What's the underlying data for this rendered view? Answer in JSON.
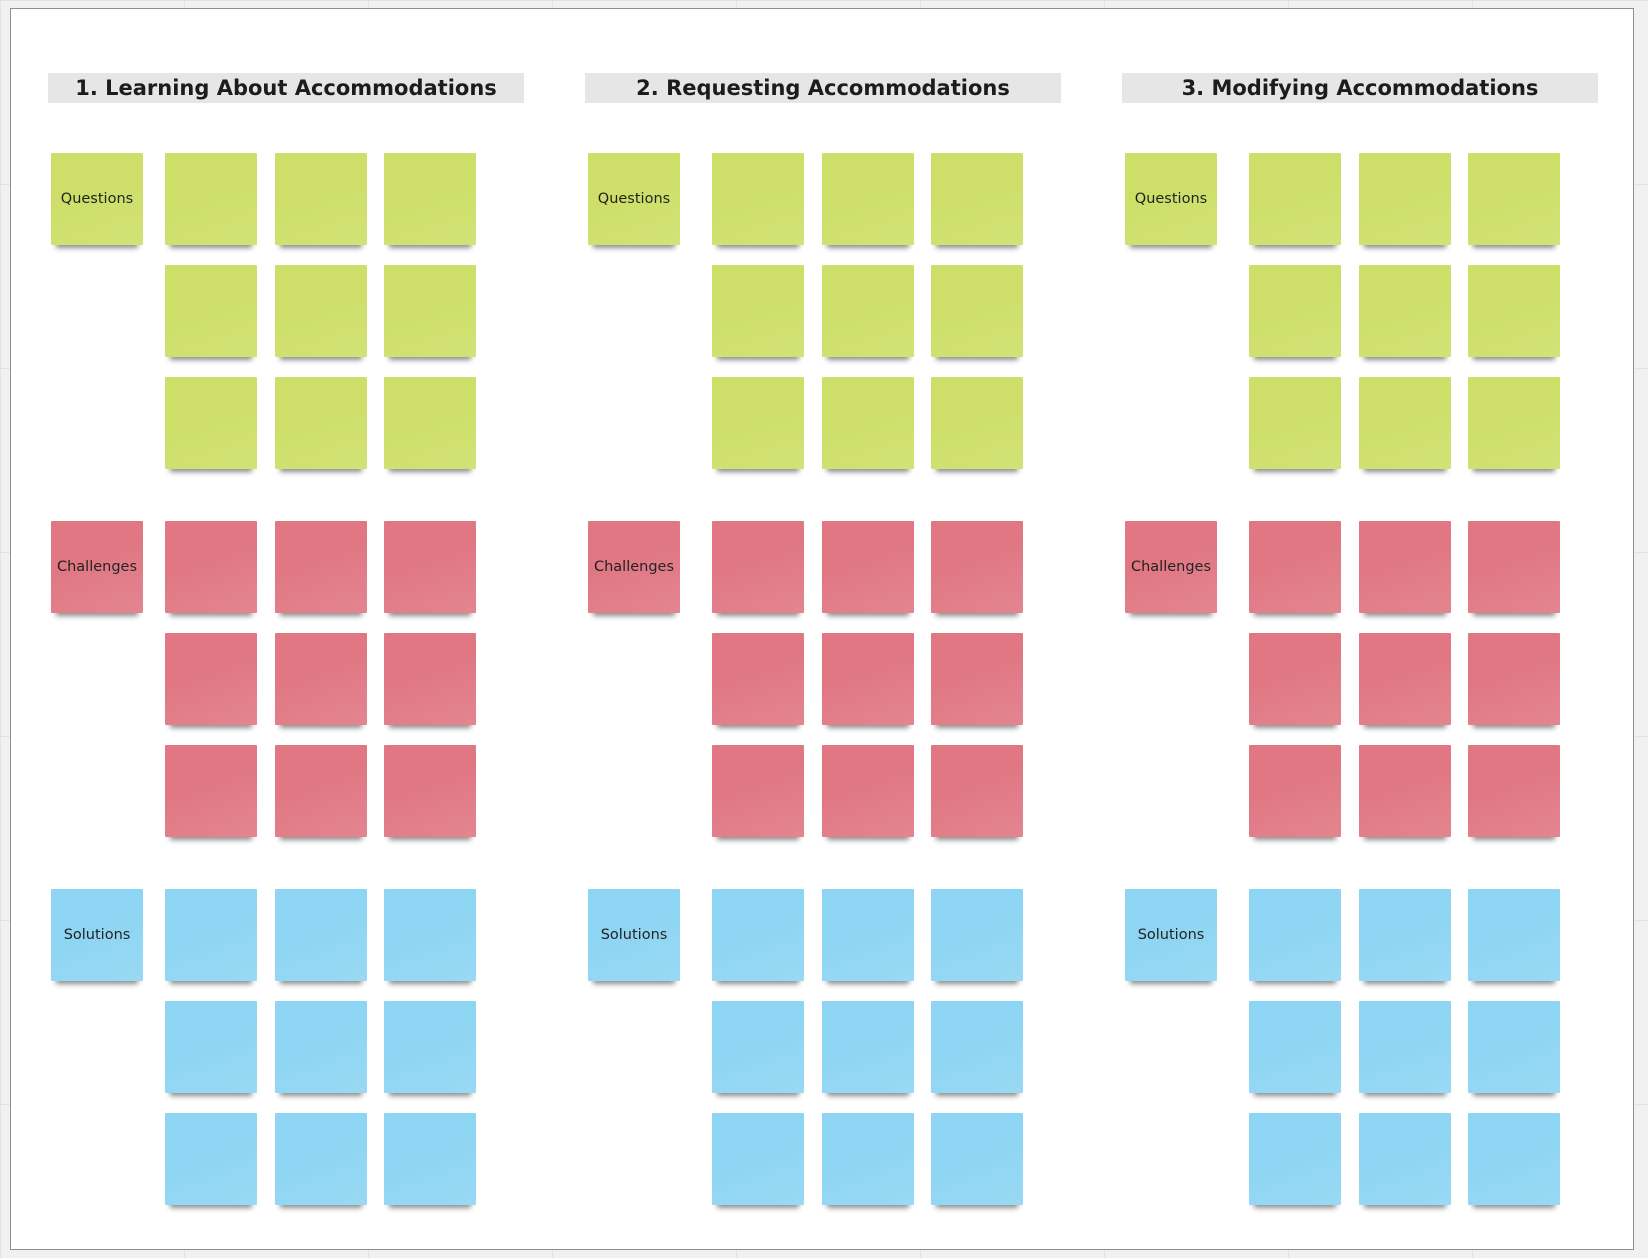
{
  "board": {
    "sections": [
      {
        "title": "1. Learning About Accommodations",
        "groups": [
          {
            "key": "questions",
            "label": "Questions",
            "color": "#cddf68",
            "empty_notes": 9
          },
          {
            "key": "challenges",
            "label": "Challenges",
            "color": "#e07783",
            "empty_notes": 9
          },
          {
            "key": "solutions",
            "label": "Solutions",
            "color": "#8dd5f3",
            "empty_notes": 9
          }
        ]
      },
      {
        "title": "2. Requesting Accommodations",
        "groups": [
          {
            "key": "questions",
            "label": "Questions",
            "color": "#cddf68",
            "empty_notes": 9
          },
          {
            "key": "challenges",
            "label": "Challenges",
            "color": "#e07783",
            "empty_notes": 9
          },
          {
            "key": "solutions",
            "label": "Solutions",
            "color": "#8dd5f3",
            "empty_notes": 9
          }
        ]
      },
      {
        "title": "3. Modifying Accommodations",
        "groups": [
          {
            "key": "questions",
            "label": "Questions",
            "color": "#cddf68",
            "empty_notes": 9
          },
          {
            "key": "challenges",
            "label": "Challenges",
            "color": "#e07783",
            "empty_notes": 9
          },
          {
            "key": "solutions",
            "label": "Solutions",
            "color": "#8dd5f3",
            "empty_notes": 9
          }
        ]
      }
    ]
  }
}
